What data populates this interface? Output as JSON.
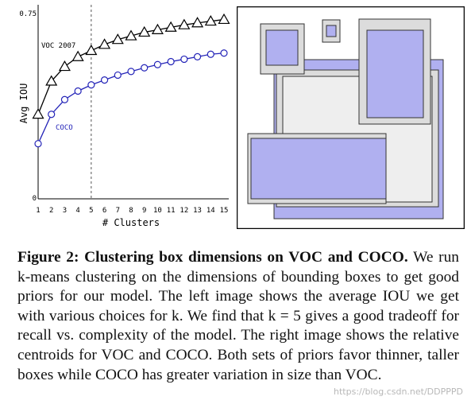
{
  "chart_data": {
    "type": "line",
    "x": [
      1,
      2,
      3,
      4,
      5,
      6,
      7,
      8,
      9,
      10,
      11,
      12,
      13,
      14,
      15
    ],
    "xlabel": "# Clusters",
    "ylabel": "Avg IOU",
    "ylim": [
      0,
      0.75
    ],
    "xtick_labels": [
      "1",
      "2",
      "3",
      "4",
      "5",
      "6",
      "7",
      "8",
      "9",
      "10",
      "11",
      "12",
      "13",
      "14",
      "15"
    ],
    "ytick_labels": [
      "0",
      "0.75"
    ],
    "vline_x": 5,
    "series": [
      {
        "name": "VOC 2007",
        "color": "#000000",
        "marker": "triangle",
        "values": [
          0.345,
          0.48,
          0.54,
          0.58,
          0.605,
          0.63,
          0.65,
          0.665,
          0.68,
          0.69,
          0.7,
          0.71,
          0.718,
          0.725,
          0.732
        ]
      },
      {
        "name": "COCO",
        "color": "#2424b8",
        "marker": "circle",
        "values": [
          0.225,
          0.345,
          0.405,
          0.44,
          0.465,
          0.485,
          0.505,
          0.52,
          0.535,
          0.548,
          0.56,
          0.57,
          0.58,
          0.59,
          0.595
        ]
      }
    ]
  },
  "centroid_colors": {
    "voc": "#dcdcdc",
    "coco": "#b0b0f0",
    "border": "#333333"
  },
  "caption": {
    "label": "Figure 2:",
    "title": "Clustering box dimensions on VOC and COCO.",
    "body": "We run k-means clustering on the dimensions of bounding boxes to get good priors for our model. The left image shows the average IOU we get with various choices for k. We find that k = 5 gives a good tradeoff for recall vs. complexity of the model. The right image shows the relative centroids for VOC and COCO. Both sets of priors favor thinner, taller boxes while COCO has greater variation in size than VOC."
  },
  "watermark": "https://blog.csdn.net/DDPPPD"
}
